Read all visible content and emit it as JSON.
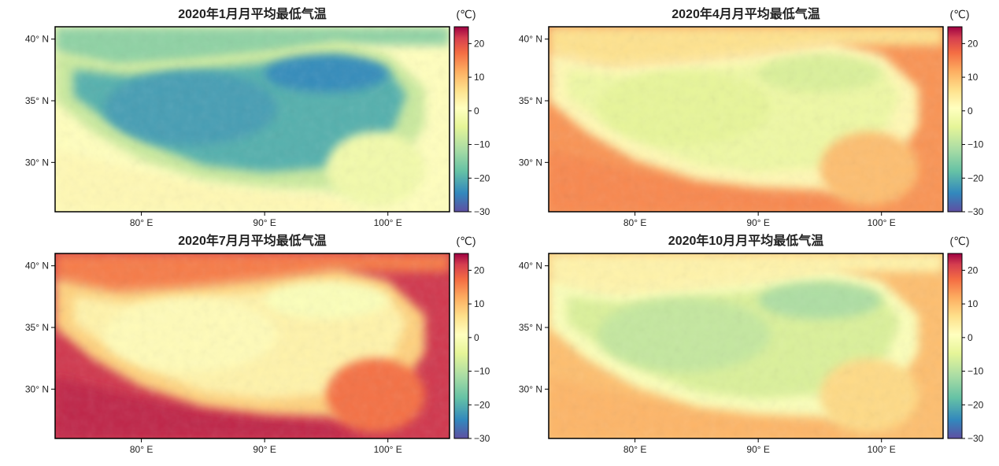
{
  "figure": {
    "panels": [
      {
        "title": "2020年1月月平均最低气温",
        "unit": "(℃)",
        "season": "jan",
        "colorbar_ticks": [
          "20",
          "10",
          "0",
          "−10",
          "−20",
          "−30"
        ],
        "lat_ticks": [
          "40° N",
          "35° N",
          "30° N"
        ],
        "lon_ticks": [
          "80° E",
          "90° E",
          "100° E"
        ]
      },
      {
        "title": "2020年4月月平均最低气温",
        "unit": "(℃)",
        "season": "apr",
        "colorbar_ticks": [
          "20",
          "10",
          "0",
          "−10",
          "−20",
          "−30"
        ],
        "lat_ticks": [
          "40° N",
          "35° N",
          "30° N"
        ],
        "lon_ticks": [
          "80° E",
          "90° E",
          "100° E"
        ]
      },
      {
        "title": "2020年7月月平均最低气温",
        "unit": "(℃)",
        "season": "jul",
        "colorbar_ticks": [
          "20",
          "10",
          "0",
          "−10",
          "−20",
          "−30"
        ],
        "lat_ticks": [
          "40° N",
          "35° N",
          "30° N"
        ],
        "lon_ticks": [
          "80° E",
          "90° E",
          "100° E"
        ]
      },
      {
        "title": "2020年10月月平均最低气温",
        "unit": "(℃)",
        "season": "oct",
        "colorbar_ticks": [
          "20",
          "10",
          "0",
          "−10",
          "−20",
          "−30"
        ],
        "lat_ticks": [
          "40° N",
          "35° N",
          "30° N"
        ],
        "lon_ticks": [
          "80° E",
          "90° E",
          "100° E"
        ]
      }
    ],
    "colorbar": {
      "min": -30,
      "max": 25,
      "tick_values": [
        20,
        10,
        0,
        -10,
        -20,
        -30
      ]
    },
    "map_extent": {
      "lon": [
        73,
        105
      ],
      "lat": [
        26,
        41
      ]
    },
    "lat_tick_values": [
      40,
      35,
      30
    ],
    "lon_tick_values": [
      80,
      90,
      100
    ]
  }
}
